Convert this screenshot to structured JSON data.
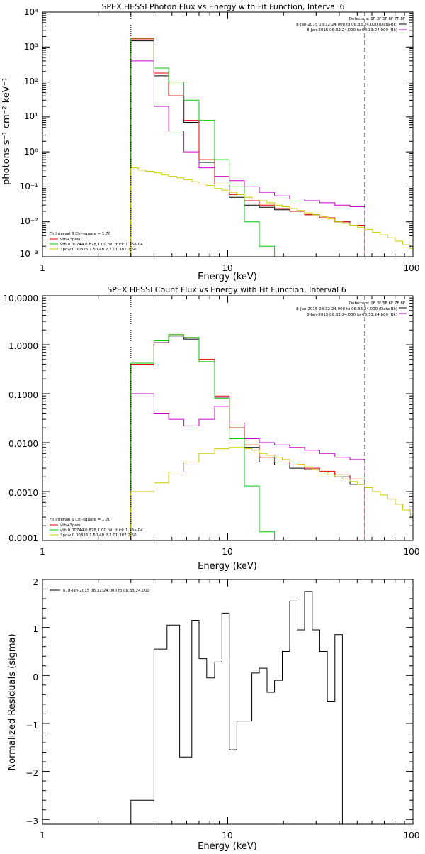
{
  "chart_data": [
    {
      "type": "line",
      "title": "SPEX HESSI Photon Flux vs Energy with Fit Function, Interval 6",
      "xlabel": "Energy (keV)",
      "ylabel": "photons s⁻¹ cm⁻² keV⁻¹",
      "xscale": "log",
      "yscale": "log",
      "xlim": [
        1,
        100
      ],
      "ylim": [
        0.001,
        10000
      ],
      "x_ticks": [
        "1",
        "10",
        "100"
      ],
      "y_ticks": [
        "10⁻³",
        "10⁻²",
        "10⁻¹",
        "10⁰",
        "10¹",
        "10²",
        "10³",
        "10⁴"
      ],
      "header_lines": [
        "Detectors: 1F 3F 5F 6F 7F 8F",
        "8-Jan-2015 08:32:24.000 to 08:33:24.000 (Data-Bk)",
        "8-Jan-2015 08:32:24.000 to 08:33:24.000 (Bk)"
      ],
      "header_line_colors": [
        "",
        "#000000",
        "#cc00cc"
      ],
      "legend_title": "Fit Interval 6   Chi-square = 1.70",
      "legend": [
        "vth+3pow",
        "vth 0.00744,0.878,1.00  full thick 1.26e-04",
        "3pow 0.00826,1.50,48.2,2.01,387,2.50"
      ],
      "legend_colors": [
        "#ee0000",
        "#00cc00",
        "#cccc00"
      ],
      "vlines": [
        {
          "x": 3.0,
          "style": "dotted"
        },
        {
          "x": 55,
          "style": "dashed"
        }
      ],
      "edges": [
        3.0,
        3.3,
        3.6,
        4.0,
        4.4,
        4.8,
        5.3,
        5.8,
        6.4,
        7.0,
        7.7,
        8.5,
        9.3,
        10.2,
        11.2,
        12.3,
        13.5,
        14.8,
        16.3,
        17.9,
        19.7,
        21.6,
        23.7,
        26.0,
        28.6,
        31.4,
        34.5,
        37.9,
        41.6,
        45.7,
        50.2,
        55.1,
        60.5,
        66.5,
        73.0,
        80.2,
        88.1,
        96.8,
        100
      ],
      "series": [
        {
          "name": "Data-Bk",
          "color": "#000000",
          "values": [
            1500,
            1500,
            1500,
            150,
            150,
            40,
            40,
            7,
            7,
            0.5,
            0.5,
            0.12,
            0.12,
            0.05,
            0.05,
            0.03,
            0.03,
            0.026,
            0.026,
            0.022,
            0.022,
            0.02,
            0.02,
            0.016,
            0.016,
            0.013,
            0.013,
            0.01,
            0.01,
            0.008,
            0.008
          ]
        },
        {
          "name": "Bk",
          "color": "#cc00cc",
          "values": [
            400,
            400,
            400,
            20,
            20,
            4,
            4,
            1,
            1,
            0.35,
            0.35,
            0.2,
            0.2,
            0.15,
            0.15,
            0.1,
            0.1,
            0.07,
            0.07,
            0.055,
            0.055,
            0.045,
            0.045,
            0.04,
            0.04,
            0.035,
            0.035,
            0.03,
            0.03,
            0.027,
            0.027
          ]
        },
        {
          "name": "vth+3pow",
          "color": "#ee0000",
          "values": [
            1700,
            1700,
            1700,
            180,
            180,
            40,
            40,
            8,
            8,
            0.6,
            0.6,
            0.12,
            0.12,
            0.06,
            0.06,
            0.04,
            0.04,
            0.03,
            0.03,
            0.024,
            0.024,
            0.02,
            0.02,
            0.016,
            0.016,
            0.013,
            0.013,
            0.01,
            0.01,
            0.008,
            0.008
          ]
        },
        {
          "name": "vth",
          "color": "#00cc00",
          "values": [
            1800,
            1800,
            1800,
            250,
            250,
            100,
            100,
            30,
            30,
            8,
            8,
            0.6,
            0.6,
            0.1,
            0.1,
            0.01,
            0.01,
            0.002,
            0.002,
            0.0008
          ]
        },
        {
          "name": "3pow",
          "color": "#cccc00",
          "values": [
            0.35,
            0.3,
            0.28,
            0.25,
            0.22,
            0.2,
            0.18,
            0.16,
            0.14,
            0.12,
            0.11,
            0.09,
            0.08,
            0.07,
            0.06,
            0.05,
            0.045,
            0.04,
            0.035,
            0.03,
            0.027,
            0.024,
            0.021,
            0.018,
            0.016,
            0.014,
            0.012,
            0.01,
            0.009,
            0.008,
            0.007,
            0.006,
            0.005,
            0.0042,
            0.0035,
            0.0028,
            0.0022,
            0.0017
          ]
        }
      ]
    },
    {
      "type": "line",
      "title": "SPEX HESSI Count Flux vs Energy with Fit Function, Interval 6",
      "xlabel": "Energy (keV)",
      "ylabel": "",
      "xscale": "log",
      "yscale": "log",
      "xlim": [
        1,
        100
      ],
      "ylim": [
        0.0001,
        10
      ],
      "x_ticks": [
        "1",
        "10",
        "100"
      ],
      "y_ticks": [
        "0.0001",
        "0.0010",
        "0.0100",
        "0.1000",
        "1.0000",
        "10.0000"
      ],
      "header_lines": [
        "Detectors: 1F 3F 5F 6F 7F 8F",
        "8-Jan-2015 08:32:24.000 to 08:33:24.000 (Data-Bk)",
        "8-Jan-2015 08:32:24.000 to 08:33:24.000 (Bk)"
      ],
      "header_line_colors": [
        "",
        "#000000",
        "#cc00cc"
      ],
      "legend_title": "Fit Interval 6   Chi-square = 1.70",
      "legend": [
        "vth+3pow",
        "vth 0.00744,0.878,1.00  full thick 1.26e-04",
        "3pow 0.00826,1.50,48.2,2.01,387,2.50"
      ],
      "legend_colors": [
        "#ee0000",
        "#00cc00",
        "#cccc00"
      ],
      "vlines": [
        {
          "x": 3.0,
          "style": "dotted"
        },
        {
          "x": 55,
          "style": "dashed"
        }
      ],
      "edges": [
        3.0,
        3.3,
        3.6,
        4.0,
        4.4,
        4.8,
        5.3,
        5.8,
        6.4,
        7.0,
        7.7,
        8.5,
        9.3,
        10.2,
        11.2,
        12.3,
        13.5,
        14.8,
        16.3,
        17.9,
        19.7,
        21.6,
        23.7,
        26.0,
        28.6,
        31.4,
        34.5,
        37.9,
        41.6,
        45.7,
        50.2,
        55.1,
        60.5,
        66.5,
        73.0,
        80.2,
        88.1,
        96.8,
        100
      ],
      "series": [
        {
          "name": "Data-Bk",
          "color": "#000000",
          "values": [
            0.35,
            0.35,
            0.35,
            1.1,
            1.1,
            1.5,
            1.5,
            1.3,
            1.3,
            0.5,
            0.5,
            0.085,
            0.085,
            0.02,
            0.02,
            0.008,
            0.008,
            0.004,
            0.004,
            0.0035,
            0.0035,
            0.003,
            0.003,
            0.0028,
            0.0028,
            0.0025,
            0.0025,
            0.002,
            0.002,
            0.0014,
            0.0014
          ]
        },
        {
          "name": "Bk",
          "color": "#cc00cc",
          "values": [
            0.1,
            0.1,
            0.1,
            0.04,
            0.04,
            0.03,
            0.03,
            0.022,
            0.022,
            0.03,
            0.03,
            0.055,
            0.055,
            0.025,
            0.025,
            0.012,
            0.012,
            0.01,
            0.01,
            0.009,
            0.009,
            0.008,
            0.008,
            0.007,
            0.007,
            0.006,
            0.006,
            0.005,
            0.005,
            0.0045,
            0.0045
          ]
        },
        {
          "name": "vth+3pow",
          "color": "#ee0000",
          "values": [
            0.4,
            0.4,
            0.4,
            1.2,
            1.2,
            1.6,
            1.6,
            1.4,
            1.4,
            0.5,
            0.5,
            0.09,
            0.09,
            0.02,
            0.02,
            0.009,
            0.009,
            0.005,
            0.005,
            0.004,
            0.004,
            0.0035,
            0.0035,
            0.003,
            0.003,
            0.0026,
            0.0026,
            0.0022,
            0.0022,
            0.0018,
            0.0018
          ]
        },
        {
          "name": "vth",
          "color": "#00cc00",
          "values": [
            0.42,
            0.42,
            0.42,
            1.2,
            1.2,
            1.6,
            1.6,
            1.4,
            1.4,
            0.45,
            0.45,
            0.08,
            0.08,
            0.012,
            0.012,
            0.0013,
            0.0013,
            0.00015,
            0.00015,
            5e-05
          ]
        },
        {
          "name": "3pow",
          "color": "#cccc00",
          "values": [
            0.001,
            0.001,
            0.001,
            0.0015,
            0.0015,
            0.0025,
            0.0025,
            0.004,
            0.004,
            0.006,
            0.006,
            0.0075,
            0.0075,
            0.008,
            0.008,
            0.0075,
            0.007,
            0.006,
            0.0055,
            0.005,
            0.0045,
            0.004,
            0.0036,
            0.0032,
            0.0028,
            0.0025,
            0.0022,
            0.002,
            0.0018,
            0.0016,
            0.0014,
            0.0012,
            0.001,
            0.00085,
            0.0007,
            0.00055,
            0.00042,
            0.0003
          ]
        }
      ]
    },
    {
      "type": "line",
      "title": "",
      "xlabel": "Energy (keV)",
      "ylabel": "Normalized Residuals (sigma)",
      "xscale": "log",
      "yscale": "linear",
      "xlim": [
        1,
        100
      ],
      "ylim": [
        -3.1,
        2
      ],
      "x_ticks": [
        "1",
        "10",
        "100"
      ],
      "y_ticks": [
        "−3",
        "−2",
        "−1",
        "0",
        "1",
        "2"
      ],
      "legend": [
        "6, 8-Jan-2015 08:32:24.000 to 08:33:24.000"
      ],
      "legend_colors": [
        "#000000"
      ],
      "edges": [
        3.0,
        4.0,
        4.7,
        5.5,
        6.4,
        7.0,
        7.7,
        8.5,
        9.3,
        10.2,
        11.2,
        12.3,
        13.5,
        14.8,
        16.3,
        17.9,
        19.7,
        21.6,
        23.7,
        26.0,
        28.6,
        31.4,
        34.5,
        37.9,
        41.6,
        45.7,
        50.2,
        55.1
      ],
      "series": [
        {
          "name": "residuals",
          "color": "#000000",
          "values": [
            -2.6,
            0.55,
            1.05,
            -1.7,
            1.15,
            0.35,
            -0.05,
            0.28,
            1.3,
            -1.55,
            -0.95,
            -0.95,
            0.05,
            0.15,
            -0.35,
            -0.1,
            0.5,
            1.55,
            0.95,
            1.75,
            0.95,
            0.5,
            -0.55,
            0.85,
            -3.1
          ]
        }
      ]
    }
  ]
}
